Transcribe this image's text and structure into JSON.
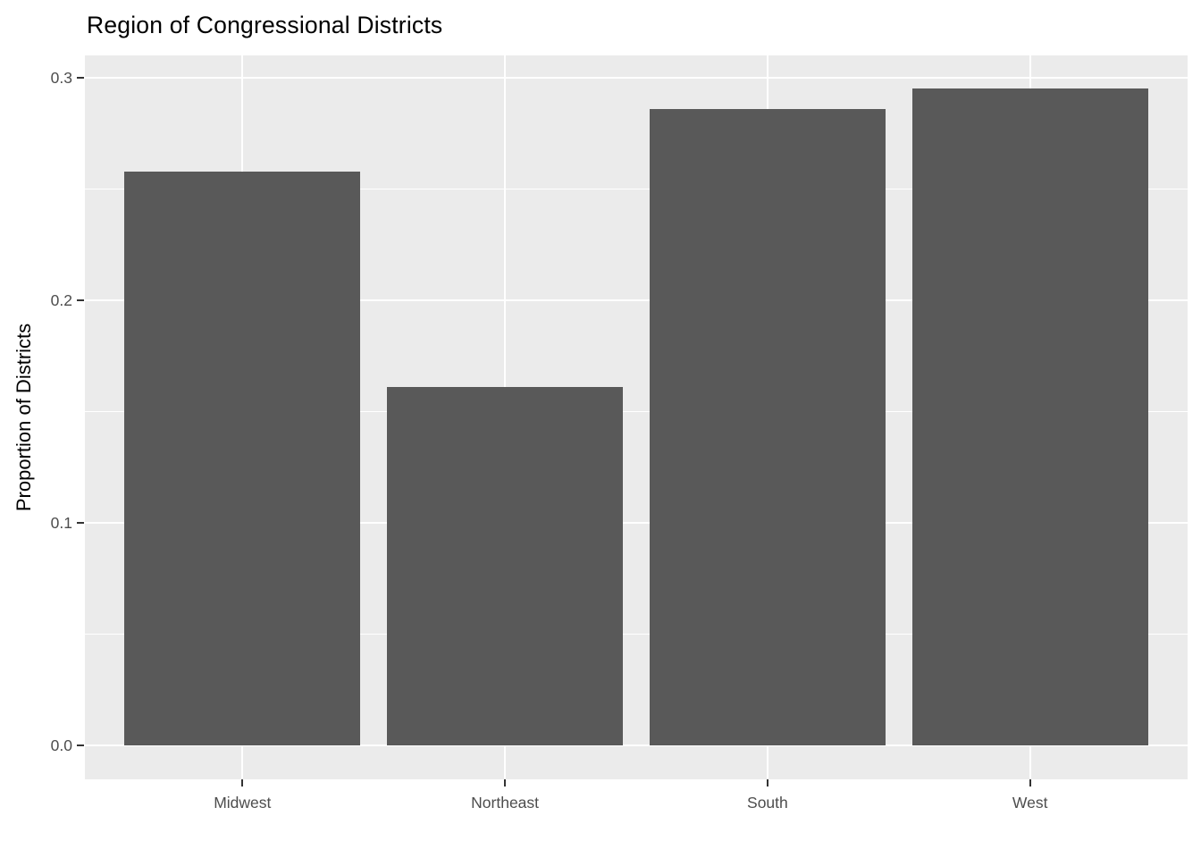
{
  "figure": {
    "kind": "static-plot",
    "style": "ggplot2-grey-theme"
  },
  "chart_data": {
    "type": "bar",
    "title": "Region of Congressional Districts",
    "xlabel": "",
    "ylabel": "Proportion of Districts",
    "categories": [
      "Midwest",
      "Northeast",
      "South",
      "West"
    ],
    "values": [
      0.258,
      0.161,
      0.286,
      0.295
    ],
    "ylim": [
      0,
      0.31
    ],
    "yticks": {
      "values": [
        0.0,
        0.1,
        0.2,
        0.3
      ],
      "labels": [
        "0.0",
        "0.1",
        "0.2",
        "0.3"
      ]
    },
    "minor_yticks": [
      0.05,
      0.15,
      0.25
    ],
    "grid": "horizontal major+minor white lines; vertical white lines at category centers",
    "legend": "none",
    "bar_width_fraction": 0.9,
    "colors": {
      "bar_fill": "#595959",
      "panel_background": "#EBEBEB",
      "gridline": "#FFFFFF",
      "axis_text": "#4D4D4D",
      "tick_mark": "#333333",
      "title_text": "#000000",
      "figure_background": "#FFFFFF"
    }
  }
}
